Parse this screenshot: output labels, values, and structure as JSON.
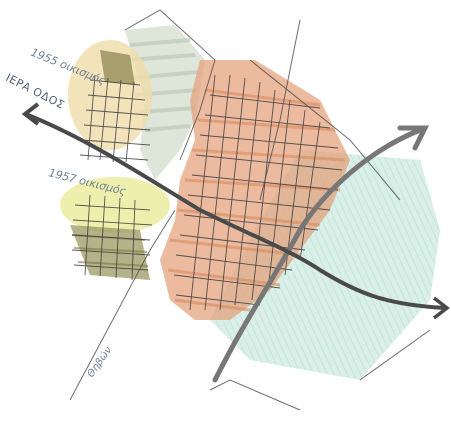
{
  "labels": {
    "settlement_1955": "1955 οικισμός",
    "sacred_way": "ΙΕΡΑ ΟΔΟΣ",
    "settlement_1957": "1957 οικισμός",
    "thebes_road": "Θηβών"
  },
  "colors": {
    "orange_area": "#d9875a",
    "green_area": "#9fcdbd",
    "sage_area": "#bcc9b8",
    "yellow_area": "#e8e58f",
    "olive_area": "#8d8a52",
    "tan_area": "#e9cc87",
    "road_dark": "#4a4a4a",
    "road_gray": "#777777",
    "text": "#6f7f92",
    "grid_line": "#3a3a3a"
  }
}
